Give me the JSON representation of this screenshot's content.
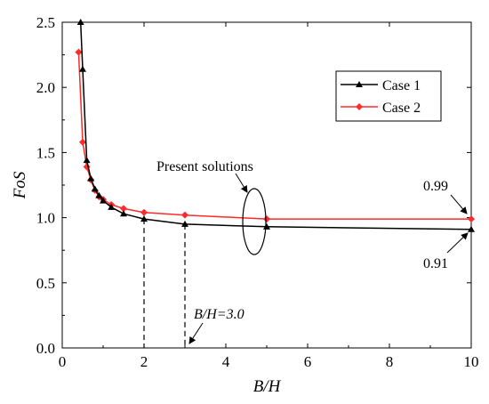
{
  "chart_data": {
    "type": "line",
    "xlabel": "B/H",
    "ylabel": "FoS",
    "xlim": [
      0,
      10
    ],
    "ylim": [
      0,
      2.5
    ],
    "xticks": [
      0,
      2,
      4,
      6,
      8,
      10
    ],
    "yticks": [
      0.0,
      0.5,
      1.0,
      1.5,
      2.0,
      2.5
    ],
    "xtick_labels": [
      "0",
      "2",
      "4",
      "6",
      "8",
      "10"
    ],
    "ytick_labels": [
      "0.0",
      "0.5",
      "1.0",
      "1.5",
      "2.0",
      "2.5"
    ],
    "grid": false,
    "legend_position": "top-right",
    "series": [
      {
        "name": "Case 1",
        "color": "#000000",
        "marker": "triangle",
        "x": [
          0.45,
          0.5,
          0.6,
          0.7,
          0.8,
          0.9,
          1.0,
          1.2,
          1.5,
          2.0,
          3.0,
          5.0,
          10.0
        ],
        "y": [
          2.5,
          2.14,
          1.44,
          1.3,
          1.22,
          1.17,
          1.13,
          1.08,
          1.03,
          0.99,
          0.95,
          0.93,
          0.91
        ]
      },
      {
        "name": "Case 2",
        "color": "#ff2a2a",
        "marker": "diamond",
        "x": [
          0.4,
          0.5,
          0.6,
          0.7,
          0.8,
          0.9,
          1.0,
          1.2,
          1.5,
          2.0,
          3.0,
          5.0,
          10.0
        ],
        "y": [
          2.27,
          1.58,
          1.39,
          1.29,
          1.21,
          1.16,
          1.14,
          1.1,
          1.07,
          1.04,
          1.02,
          0.99,
          0.99
        ]
      }
    ],
    "annotations": {
      "present_solutions": "Present solutions",
      "bh_marker": "B/H=3.0",
      "case2_end_value": "0.99",
      "case1_end_value": "0.91"
    }
  }
}
